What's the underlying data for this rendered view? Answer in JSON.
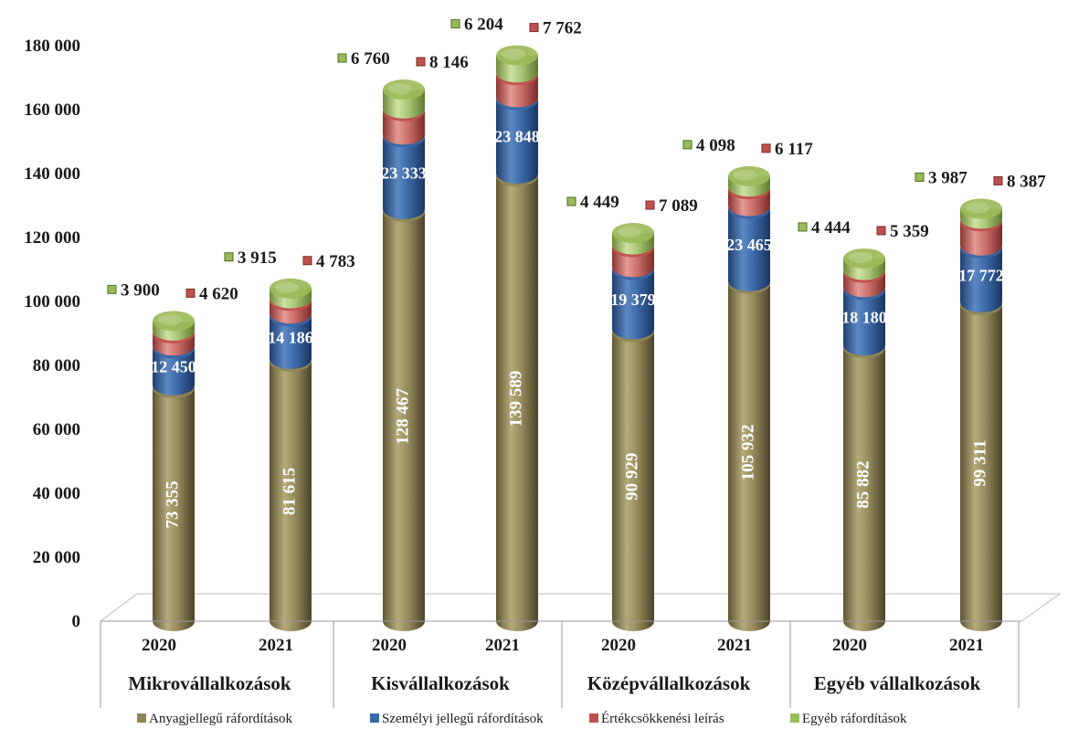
{
  "chart_data": {
    "type": "bar",
    "stacked": true,
    "style": "3d-cylinder",
    "ylim": [
      0,
      180000
    ],
    "yticks": [
      {
        "value": 0,
        "label": "0"
      },
      {
        "value": 20000,
        "label": "20 000"
      },
      {
        "value": 40000,
        "label": "40 000"
      },
      {
        "value": 60000,
        "label": "60 000"
      },
      {
        "value": 80000,
        "label": "80 000"
      },
      {
        "value": 100000,
        "label": "100 000"
      },
      {
        "value": 120000,
        "label": "120 000"
      },
      {
        "value": 140000,
        "label": "140 000"
      },
      {
        "value": 160000,
        "label": "160 000"
      },
      {
        "value": 180000,
        "label": "180 000"
      }
    ],
    "grid": false,
    "legend_position": "bottom",
    "categories": [
      "2020",
      "2021",
      "2020",
      "2021",
      "2020",
      "2021",
      "2020",
      "2021"
    ],
    "groups": [
      {
        "label": "Mikrovállalkozások"
      },
      {
        "label": "Kisvállalkozások"
      },
      {
        "label": "Középvállalkozások"
      },
      {
        "label": "Egyéb vállalkozások"
      }
    ],
    "series": [
      {
        "name": "Anyagjellegű ráfordítások",
        "color": "#8f8557",
        "values": [
          73355,
          81615,
          128467,
          139589,
          90929,
          105932,
          85882,
          99311
        ],
        "labels": [
          "73 355",
          "81 615",
          "128 467",
          "139 589",
          "90 929",
          "105 932",
          "85 882",
          "99 311"
        ]
      },
      {
        "name": "Személyi jellegű ráfordítások",
        "color": "#3a67a5",
        "values": [
          12450,
          14186,
          23333,
          23848,
          19379,
          23465,
          18180,
          17772
        ],
        "labels": [
          "12 450",
          "14 186",
          "23 333",
          "23 848",
          "19 379",
          "23 465",
          "18 180",
          "17 772"
        ]
      },
      {
        "name": "Értékcsökkenési leírás",
        "color": "#c0504d",
        "values": [
          4620,
          4783,
          8146,
          7762,
          7089,
          6117,
          5359,
          8387
        ],
        "labels": [
          "4 620",
          "4 783",
          "8 146",
          "7 762",
          "7 089",
          "6 117",
          "5 359",
          "8 387"
        ]
      },
      {
        "name": "Egyéb ráfordítások",
        "color": "#9bbb59",
        "values": [
          3900,
          3915,
          6760,
          6204,
          4449,
          4098,
          4444,
          3987
        ],
        "labels": [
          "3 900",
          "3 915",
          "6 760",
          "6 204",
          "4 449",
          "4 098",
          "4 444",
          "3 987"
        ]
      }
    ]
  }
}
